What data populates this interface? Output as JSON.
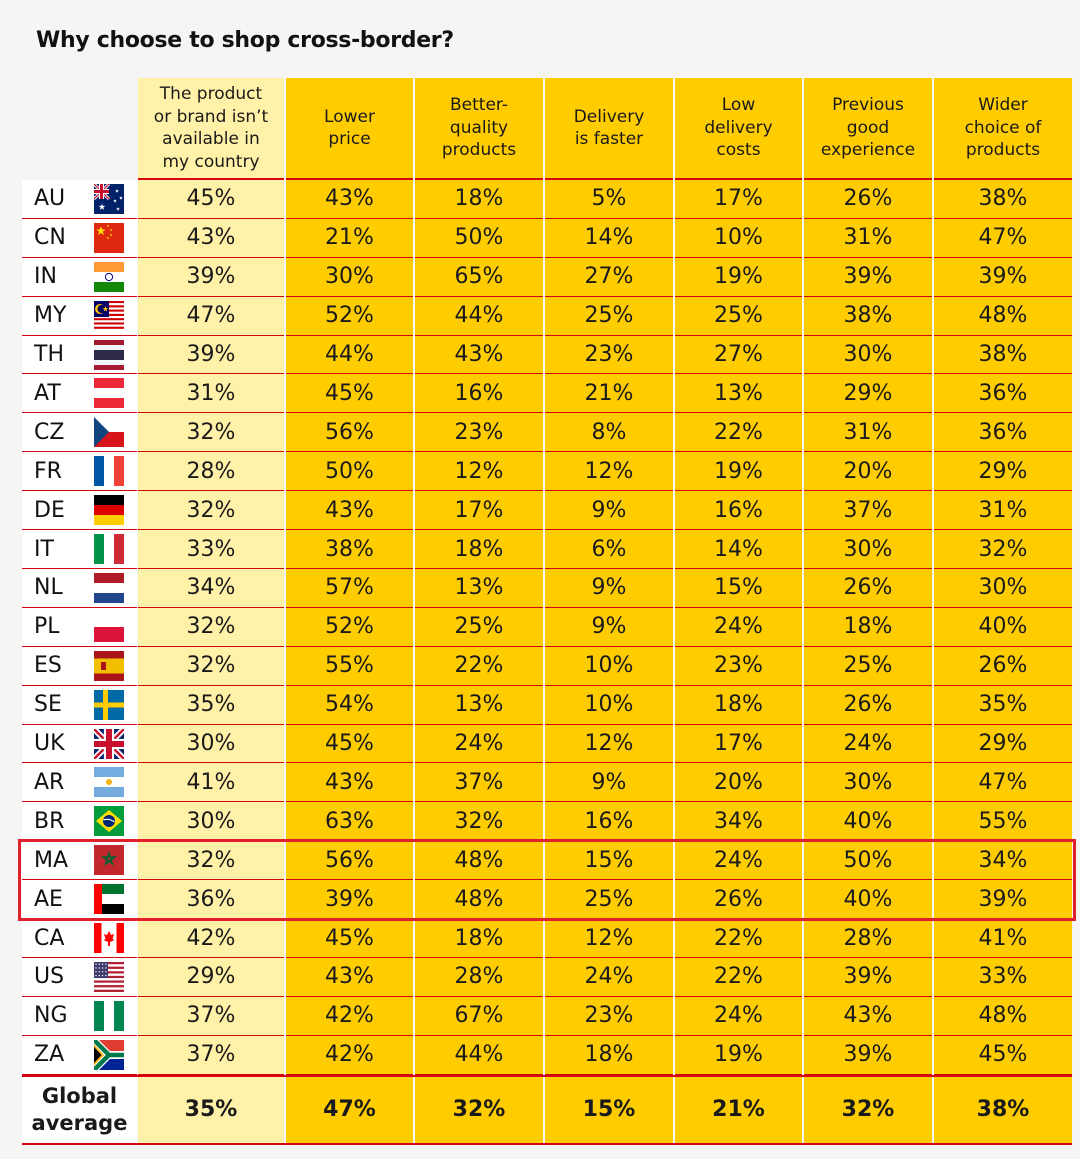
{
  "title": "Why choose to shop cross-border?",
  "colors": {
    "column_light": "#fff1a8",
    "column_yellow": "#ffcc00",
    "rule_red": "#d40511",
    "highlight_red": "#e0202a",
    "label_bg": "#ffffff"
  },
  "chart_data": {
    "type": "table",
    "title": "Why choose to shop cross-border?",
    "columns": [
      "The product or brand isn’t available in my country",
      "Lower price",
      "Better-quality products",
      "Delivery is faster",
      "Low delivery costs",
      "Previous good experience",
      "Wider choice of products"
    ],
    "column_lines": [
      [
        "The product",
        "or brand isn’t",
        "available in",
        "my country"
      ],
      [
        "Lower",
        "price"
      ],
      [
        "Better-",
        "quality",
        "products"
      ],
      [
        "Delivery",
        "is faster"
      ],
      [
        "Low",
        "delivery",
        "costs"
      ],
      [
        "Previous",
        "good",
        "experience"
      ],
      [
        "Wider",
        "choice of",
        "products"
      ]
    ],
    "rows": [
      {
        "code": "AU",
        "flag": "australia-flag",
        "values": [
          "45%",
          "43%",
          "18%",
          "5%",
          "17%",
          "26%",
          "38%"
        ]
      },
      {
        "code": "CN",
        "flag": "china-flag",
        "values": [
          "43%",
          "21%",
          "50%",
          "14%",
          "10%",
          "31%",
          "47%"
        ]
      },
      {
        "code": "IN",
        "flag": "india-flag",
        "values": [
          "39%",
          "30%",
          "65%",
          "27%",
          "19%",
          "39%",
          "39%"
        ]
      },
      {
        "code": "MY",
        "flag": "malaysia-flag",
        "values": [
          "47%",
          "52%",
          "44%",
          "25%",
          "25%",
          "38%",
          "48%"
        ]
      },
      {
        "code": "TH",
        "flag": "thailand-flag",
        "values": [
          "39%",
          "44%",
          "43%",
          "23%",
          "27%",
          "30%",
          "38%"
        ]
      },
      {
        "code": "AT",
        "flag": "austria-flag",
        "values": [
          "31%",
          "45%",
          "16%",
          "21%",
          "13%",
          "29%",
          "36%"
        ]
      },
      {
        "code": "CZ",
        "flag": "czech-flag",
        "values": [
          "32%",
          "56%",
          "23%",
          "8%",
          "22%",
          "31%",
          "36%"
        ]
      },
      {
        "code": "FR",
        "flag": "france-flag",
        "values": [
          "28%",
          "50%",
          "12%",
          "12%",
          "19%",
          "20%",
          "29%"
        ]
      },
      {
        "code": "DE",
        "flag": "germany-flag",
        "values": [
          "32%",
          "43%",
          "17%",
          "9%",
          "16%",
          "37%",
          "31%"
        ]
      },
      {
        "code": "IT",
        "flag": "italy-flag",
        "values": [
          "33%",
          "38%",
          "18%",
          "6%",
          "14%",
          "30%",
          "32%"
        ]
      },
      {
        "code": "NL",
        "flag": "netherlands-flag",
        "values": [
          "34%",
          "57%",
          "13%",
          "9%",
          "15%",
          "26%",
          "30%"
        ]
      },
      {
        "code": "PL",
        "flag": "poland-flag",
        "values": [
          "32%",
          "52%",
          "25%",
          "9%",
          "24%",
          "18%",
          "40%"
        ]
      },
      {
        "code": "ES",
        "flag": "spain-flag",
        "values": [
          "32%",
          "55%",
          "22%",
          "10%",
          "23%",
          "25%",
          "26%"
        ]
      },
      {
        "code": "SE",
        "flag": "sweden-flag",
        "values": [
          "35%",
          "54%",
          "13%",
          "10%",
          "18%",
          "26%",
          "35%"
        ]
      },
      {
        "code": "UK",
        "flag": "uk-flag",
        "values": [
          "30%",
          "45%",
          "24%",
          "12%",
          "17%",
          "24%",
          "29%"
        ]
      },
      {
        "code": "AR",
        "flag": "argentina-flag",
        "values": [
          "41%",
          "43%",
          "37%",
          "9%",
          "20%",
          "30%",
          "47%"
        ]
      },
      {
        "code": "BR",
        "flag": "brazil-flag",
        "values": [
          "30%",
          "63%",
          "32%",
          "16%",
          "34%",
          "40%",
          "55%"
        ]
      },
      {
        "code": "MA",
        "flag": "morocco-flag",
        "values": [
          "32%",
          "56%",
          "48%",
          "15%",
          "24%",
          "50%",
          "34%"
        ]
      },
      {
        "code": "AE",
        "flag": "uae-flag",
        "values": [
          "36%",
          "39%",
          "48%",
          "25%",
          "26%",
          "40%",
          "39%"
        ]
      },
      {
        "code": "CA",
        "flag": "canada-flag",
        "values": [
          "42%",
          "45%",
          "18%",
          "12%",
          "22%",
          "28%",
          "41%"
        ]
      },
      {
        "code": "US",
        "flag": "usa-flag",
        "values": [
          "29%",
          "43%",
          "28%",
          "24%",
          "22%",
          "39%",
          "33%"
        ]
      },
      {
        "code": "NG",
        "flag": "nigeria-flag",
        "values": [
          "37%",
          "42%",
          "67%",
          "23%",
          "24%",
          "43%",
          "48%"
        ]
      },
      {
        "code": "ZA",
        "flag": "south-africa-flag",
        "values": [
          "37%",
          "42%",
          "44%",
          "18%",
          "19%",
          "39%",
          "45%"
        ]
      }
    ],
    "highlighted_rows": [
      "MA",
      "AE"
    ],
    "average": {
      "label_lines": [
        "Global",
        "average"
      ],
      "values": [
        "35%",
        "47%",
        "32%",
        "15%",
        "21%",
        "32%",
        "38%"
      ]
    }
  }
}
